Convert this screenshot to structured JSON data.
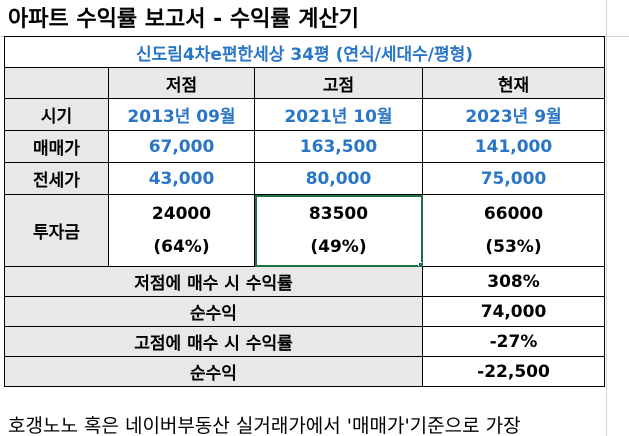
{
  "title": "아파트 수익률 보고서 - 수익률 계산기",
  "subtitle": "신도림4차e편한세상 34평 (연식/세대수/평형)",
  "columns": [
    "",
    "저점",
    "고점",
    "현재"
  ],
  "rows": {
    "period": {
      "label": "시기",
      "low": "2013년 09월",
      "high": "2021년 10월",
      "now": "2023년 9월"
    },
    "sale": {
      "label": "매매가",
      "low": "67,000",
      "high": "163,500",
      "now": "141,000"
    },
    "jeonse": {
      "label": "전세가",
      "low": "43,000",
      "high": "80,000",
      "now": "75,000"
    },
    "invest": {
      "label": "투자금",
      "low_amount": "24000",
      "low_pct": "(64%)",
      "high_amount": "83500",
      "high_pct": "(49%)",
      "now_amount": "66000",
      "now_pct": "(53%)"
    }
  },
  "summary": [
    {
      "label": "저점에 매수 시 수익률",
      "value": "308%"
    },
    {
      "label": "순수익",
      "value": "74,000"
    },
    {
      "label": "고점에 매수 시 수익률",
      "value": "-27%"
    },
    {
      "label": "순수익",
      "value": "-22,500"
    }
  ],
  "bottom_text": "호갱노노 혹은 네이버부동산 실거래가에서 '매매가'기준으로 가장",
  "colors": {
    "blue_text": "#2a76c6",
    "header_fill": "#e8e8e8",
    "selection": "#1e7145"
  }
}
